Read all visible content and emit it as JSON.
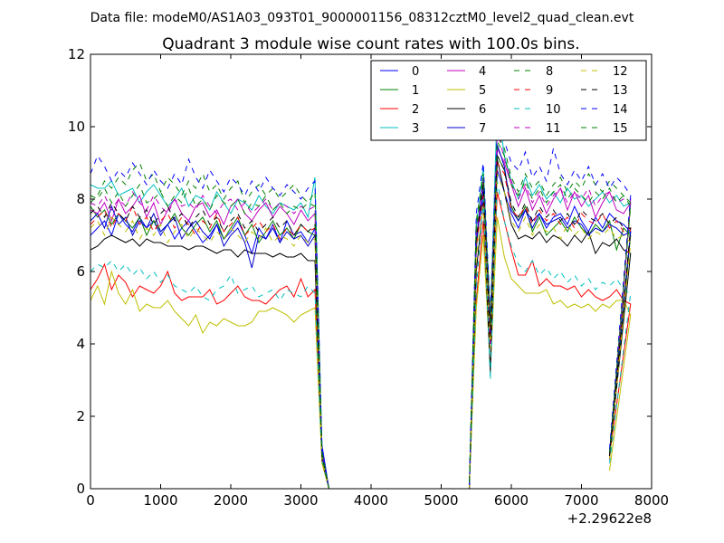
{
  "figure": {
    "suptitle": "Data file: modeM0/AS1A03_093T01_9000001156_08312cztM0_level2_quad_clean.evt"
  },
  "chart_data": {
    "type": "line",
    "title": "Quadrant 3 module wise count rates with 100.0s bins.",
    "xlabel": "",
    "ylabel": "",
    "x_offset_label": "+2.29622e8",
    "xlim": [
      0,
      8000
    ],
    "ylim": [
      0,
      12
    ],
    "xticks": [
      0,
      1000,
      2000,
      3000,
      4000,
      5000,
      6000,
      7000,
      8000
    ],
    "xtick_labels": [
      "0",
      "1000",
      "2000",
      "3000",
      "4000",
      "5000",
      "6000",
      "7000",
      "8000"
    ],
    "yticks": [
      0,
      2,
      4,
      6,
      8,
      10,
      12
    ],
    "ytick_labels": [
      "0",
      "2",
      "4",
      "6",
      "8",
      "10",
      "12"
    ],
    "grid": false,
    "legend": {
      "placement": "top-right",
      "columns": 4
    },
    "series": [
      {
        "name": "0",
        "color": "#0000ff",
        "dash": "solid",
        "segA": [
          7.0,
          7.2,
          7.4,
          7.0,
          7.6,
          7.3,
          7.1,
          7.5,
          7.2,
          7.4,
          7.0,
          7.3,
          6.9,
          7.2,
          7.4,
          7.1,
          6.8,
          7.0,
          7.3,
          6.9,
          7.1,
          7.4,
          7.0,
          6.5,
          7.2,
          6.9,
          7.3,
          6.8,
          7.4,
          7.0,
          7.1,
          6.8,
          7.2
        ],
        "segB": [
          7.0,
          8.0,
          4.4,
          8.8,
          8.2,
          7.6,
          7.2,
          7.7,
          7.4,
          7.6,
          7.2,
          7.5,
          7.6,
          7.3,
          7.8,
          7.4,
          7.1,
          7.5,
          7.2,
          7.6,
          7.4,
          7.3,
          7.1
        ],
        "drop1": [
          1.2,
          0.0
        ],
        "drop2": [
          1.0
        ]
      },
      {
        "name": "1",
        "color": "#008000",
        "dash": "solid",
        "segA": [
          7.8,
          7.5,
          7.7,
          7.3,
          7.6,
          7.4,
          7.2,
          7.5,
          7.0,
          7.4,
          7.1,
          7.3,
          7.6,
          7.2,
          7.0,
          7.3,
          7.5,
          7.1,
          7.4,
          6.9,
          7.2,
          7.5,
          7.0,
          7.3,
          6.8,
          7.1,
          7.4,
          7.0,
          7.2,
          6.9,
          7.3,
          7.1,
          7.0
        ],
        "segB": [
          6.6,
          8.6,
          4.0,
          9.2,
          8.8,
          7.8,
          7.4,
          7.8,
          7.1,
          7.5,
          7.0,
          7.2,
          7.4,
          7.1,
          7.5,
          7.2,
          7.0,
          7.3,
          7.1,
          7.4,
          6.6,
          7.2,
          7.0
        ],
        "drop1": [
          0.9,
          0.0
        ],
        "drop2": [
          0.8
        ]
      },
      {
        "name": "2",
        "color": "#ff0000",
        "dash": "solid",
        "segA": [
          5.5,
          5.8,
          6.2,
          5.5,
          5.9,
          5.7,
          5.3,
          5.6,
          5.5,
          5.4,
          5.6,
          6.0,
          5.4,
          5.2,
          5.3,
          5.3,
          5.3,
          5.5,
          5.1,
          5.2,
          5.4,
          5.6,
          5.3,
          5.2,
          5.2,
          5.1,
          5.3,
          5.5,
          5.6,
          5.3,
          5.8,
          5.3,
          5.5
        ],
        "segB": [
          5.2,
          7.4,
          4.0,
          8.2,
          7.4,
          6.6,
          5.9,
          5.9,
          6.3,
          5.6,
          5.8,
          5.6,
          5.6,
          5.5,
          5.6,
          5.3,
          5.5,
          5.3,
          5.2,
          5.3,
          5.5,
          5.2,
          5.1
        ],
        "drop1": [
          0.8,
          0.0
        ],
        "drop2": [
          0.9
        ]
      },
      {
        "name": "3",
        "color": "#00bfbf",
        "dash": "solid",
        "segA": [
          8.4,
          8.3,
          8.3,
          8.5,
          8.1,
          8.2,
          8.3,
          7.9,
          8.2,
          8.4,
          8.1,
          7.8,
          8.0,
          8.3,
          7.8,
          8.1,
          8.0,
          7.7,
          8.2,
          7.9,
          7.6,
          8.0,
          7.9,
          7.7,
          8.1,
          7.8,
          7.6,
          7.9,
          7.8,
          7.7,
          7.9,
          7.5,
          8.6
        ],
        "segB": [
          7.2,
          8.9,
          4.6,
          10.7,
          9.2,
          8.5,
          8.0,
          8.6,
          8.1,
          8.4,
          8.0,
          8.2,
          7.9,
          8.3,
          8.0,
          8.1,
          7.8,
          8.0,
          8.2,
          7.9,
          8.1,
          7.8,
          7.9
        ],
        "drop1": [
          1.0,
          0.0
        ],
        "drop2": [
          0.9
        ]
      },
      {
        "name": "4",
        "color": "#bf00bf",
        "dash": "solid",
        "segA": [
          7.7,
          7.6,
          7.9,
          7.4,
          8.0,
          7.6,
          7.8,
          8.1,
          7.5,
          7.9,
          7.3,
          7.7,
          8.0,
          7.6,
          7.4,
          7.8,
          7.9,
          7.5,
          7.7,
          7.3,
          7.8,
          8.0,
          7.6,
          7.4,
          7.7,
          7.9,
          7.5,
          7.8,
          7.6,
          7.3,
          7.7,
          7.4,
          7.6
        ],
        "segB": [
          6.9,
          8.5,
          4.0,
          9.4,
          9.0,
          8.4,
          7.8,
          8.3,
          7.7,
          8.1,
          7.6,
          8.0,
          8.3,
          7.7,
          8.2,
          7.8,
          8.1,
          7.5,
          7.9,
          8.2,
          7.7,
          7.6,
          7.9
        ],
        "drop1": [
          0.9,
          0.0
        ],
        "drop2": [
          0.8
        ]
      },
      {
        "name": "5",
        "color": "#bfbf00",
        "dash": "solid",
        "segA": [
          5.2,
          5.6,
          5.1,
          6.0,
          5.4,
          5.1,
          5.5,
          4.9,
          5.1,
          5.0,
          5.0,
          5.2,
          4.9,
          4.7,
          4.5,
          4.8,
          4.3,
          4.6,
          4.5,
          4.7,
          4.6,
          4.5,
          4.5,
          4.6,
          4.9,
          4.9,
          5.0,
          4.9,
          4.8,
          4.6,
          4.8,
          4.9,
          5.0
        ],
        "segB": [
          5.0,
          7.0,
          3.3,
          7.5,
          6.4,
          5.8,
          5.6,
          5.4,
          5.4,
          5.4,
          5.5,
          5.1,
          5.2,
          5.0,
          5.1,
          5.0,
          5.1,
          4.9,
          5.1,
          5.0,
          5.2,
          5.2,
          4.8
        ],
        "drop1": [
          0.7,
          0.0
        ],
        "drop2": [
          0.5
        ]
      },
      {
        "name": "6",
        "color": "#000000",
        "dash": "solid",
        "segA": [
          6.6,
          6.7,
          6.9,
          7.0,
          6.9,
          6.8,
          6.9,
          6.7,
          6.9,
          6.8,
          6.8,
          6.7,
          6.7,
          6.7,
          6.6,
          6.7,
          6.7,
          6.6,
          6.5,
          6.6,
          6.6,
          6.4,
          6.6,
          6.5,
          6.5,
          6.5,
          6.4,
          6.5,
          6.4,
          6.4,
          6.5,
          6.3,
          6.3
        ],
        "segB": [
          6.0,
          7.9,
          3.2,
          9.1,
          8.2,
          7.3,
          6.9,
          7.0,
          6.9,
          7.1,
          6.8,
          7.0,
          6.9,
          6.7,
          7.0,
          6.8,
          7.1,
          6.5,
          6.8,
          6.7,
          6.9,
          6.6,
          6.5
        ],
        "drop1": [
          0.8,
          0.0
        ],
        "drop2": [
          0.9
        ]
      },
      {
        "name": "7",
        "color": "#0000cc",
        "dash": "solid",
        "segA": [
          7.4,
          7.6,
          7.2,
          7.8,
          7.3,
          7.5,
          7.0,
          7.4,
          7.2,
          7.6,
          7.1,
          7.3,
          7.5,
          6.9,
          7.2,
          7.4,
          7.1,
          6.9,
          7.3,
          6.7,
          7.0,
          7.2,
          6.8,
          6.1,
          7.0,
          6.9,
          7.2,
          6.8,
          7.1,
          6.9,
          7.0,
          6.7,
          7.0
        ],
        "segB": [
          6.8,
          8.3,
          4.2,
          9.5,
          8.9,
          7.7,
          7.4,
          7.7,
          7.2,
          7.6,
          7.3,
          7.4,
          7.5,
          7.2,
          7.4,
          7.3,
          7.0,
          7.2,
          7.1,
          7.3,
          7.2,
          7.0,
          7.1
        ],
        "drop1": [
          1.0,
          0.0
        ],
        "drop2": [
          1.0
        ]
      },
      {
        "name": "8",
        "color": "#008000",
        "dash": "dashed",
        "segA": [
          7.9,
          8.1,
          8.5,
          8.3,
          8.6,
          8.4,
          8.8,
          9.0,
          8.5,
          8.7,
          8.2,
          8.6,
          8.4,
          8.1,
          8.5,
          8.3,
          8.7,
          8.2,
          8.4,
          8.0,
          8.3,
          8.5,
          7.9,
          8.2,
          8.4,
          8.1,
          8.3,
          8.0,
          8.2,
          8.4,
          8.1,
          7.9,
          8.2
        ],
        "segB": [
          7.4,
          8.7,
          4.7,
          9.8,
          9.4,
          8.6,
          8.2,
          8.7,
          8.3,
          8.5,
          8.1,
          8.4,
          8.6,
          8.2,
          8.5,
          8.3,
          8.7,
          8.4,
          8.2,
          8.5,
          8.3,
          8.1,
          7.8
        ],
        "drop1": [
          1.0,
          0.0
        ],
        "drop2": [
          1.0
        ]
      },
      {
        "name": "9",
        "color": "#ff0000",
        "dash": "dashed",
        "segA": [
          7.3,
          7.5,
          7.7,
          7.2,
          7.6,
          7.4,
          7.8,
          7.3,
          7.5,
          7.1,
          7.4,
          7.6,
          7.2,
          7.5,
          7.3,
          7.0,
          7.4,
          7.2,
          7.6,
          7.1,
          7.3,
          7.5,
          7.0,
          7.2,
          7.4,
          7.1,
          7.3,
          6.9,
          7.2,
          7.0,
          7.3,
          7.1,
          7.2
        ],
        "segB": [
          6.7,
          8.1,
          4.1,
          9.0,
          8.7,
          7.7,
          7.5,
          7.8,
          7.3,
          7.7,
          7.4,
          7.6,
          7.3,
          7.5,
          7.2,
          7.6,
          7.4,
          7.3,
          7.6,
          7.2,
          7.4,
          7.1,
          7.2
        ],
        "drop1": [
          0.9,
          0.0
        ],
        "drop2": [
          0.9
        ]
      },
      {
        "name": "10",
        "color": "#00bfbf",
        "dash": "dashed",
        "segA": [
          6.0,
          6.2,
          6.1,
          6.3,
          6.0,
          6.2,
          5.9,
          6.1,
          5.8,
          6.0,
          5.7,
          5.9,
          5.6,
          5.5,
          5.4,
          5.6,
          5.3,
          5.2,
          5.5,
          5.6,
          5.9,
          5.4,
          5.5,
          5.6,
          5.3,
          5.4,
          5.5,
          5.2,
          5.5,
          5.4,
          5.3,
          5.6,
          5.4
        ],
        "segB": [
          5.5,
          8.0,
          3.0,
          8.5,
          7.4,
          6.7,
          6.2,
          6.0,
          6.3,
          5.9,
          6.1,
          5.8,
          6.0,
          5.7,
          5.9,
          5.6,
          5.8,
          5.5,
          5.7,
          5.6,
          5.8,
          5.5,
          5.4
        ],
        "drop1": [
          0.8,
          0.0
        ],
        "drop2": [
          0.7
        ]
      },
      {
        "name": "11",
        "color": "#bf00bf",
        "dash": "dashed",
        "segA": [
          7.9,
          7.8,
          8.1,
          7.7,
          8.0,
          7.8,
          8.2,
          7.9,
          7.7,
          8.1,
          7.8,
          7.6,
          8.0,
          7.8,
          7.9,
          7.7,
          8.1,
          7.8,
          7.6,
          7.9,
          8.0,
          7.7,
          7.9,
          7.6,
          7.8,
          8.0,
          7.7,
          7.9,
          7.8,
          7.6,
          7.8,
          7.7,
          7.8
        ],
        "segB": [
          7.0,
          8.6,
          4.3,
          9.9,
          9.1,
          8.5,
          8.0,
          8.4,
          7.9,
          8.2,
          7.8,
          8.1,
          8.3,
          7.9,
          8.2,
          8.0,
          8.3,
          7.8,
          8.1,
          8.2,
          7.9,
          8.0,
          8.0
        ],
        "drop1": [
          1.0,
          0.0
        ],
        "drop2": [
          0.9
        ]
      },
      {
        "name": "12",
        "color": "#bfbf00",
        "dash": "dashed",
        "segA": [
          7.2,
          7.4,
          7.0,
          7.5,
          7.3,
          7.1,
          7.4,
          6.9,
          7.2,
          7.0,
          7.3,
          6.8,
          7.1,
          7.3,
          6.9,
          7.2,
          7.0,
          6.8,
          7.1,
          6.9,
          7.2,
          7.0,
          6.8,
          7.1,
          6.9,
          7.2,
          6.8,
          7.0,
          6.9,
          6.7,
          7.0,
          6.8,
          6.9
        ],
        "segB": [
          6.4,
          7.8,
          3.9,
          8.7,
          8.2,
          7.4,
          7.1,
          7.5,
          7.0,
          7.3,
          7.1,
          7.2,
          6.9,
          7.3,
          7.0,
          7.2,
          6.9,
          7.1,
          7.0,
          7.2,
          6.9,
          7.0,
          6.8
        ],
        "drop1": [
          0.8,
          0.0
        ],
        "drop2": [
          0.8
        ]
      },
      {
        "name": "13",
        "color": "#000000",
        "dash": "dashed",
        "segA": [
          7.6,
          7.8,
          7.5,
          7.9,
          7.6,
          7.4,
          7.8,
          7.5,
          7.7,
          7.3,
          7.6,
          7.8,
          7.4,
          7.6,
          7.2,
          7.5,
          7.7,
          7.3,
          7.5,
          7.1,
          7.4,
          7.6,
          7.2,
          7.4,
          7.1,
          7.3,
          7.5,
          7.2,
          7.4,
          7.0,
          7.3,
          7.1,
          7.3
        ],
        "segB": [
          6.9,
          8.4,
          4.2,
          9.2,
          8.8,
          7.9,
          7.5,
          7.9,
          7.4,
          7.8,
          7.5,
          7.7,
          7.4,
          7.6,
          7.3,
          7.7,
          7.5,
          7.4,
          7.6,
          7.3,
          7.5,
          7.2,
          7.2
        ],
        "drop1": [
          0.9,
          0.0
        ],
        "drop2": [
          0.9
        ]
      },
      {
        "name": "14",
        "color": "#0000ff",
        "dash": "dashed",
        "segA": [
          8.7,
          9.2,
          8.9,
          8.5,
          8.8,
          8.6,
          9.0,
          8.7,
          8.4,
          8.8,
          8.5,
          8.3,
          8.7,
          8.4,
          9.1,
          8.6,
          8.3,
          8.8,
          8.5,
          8.2,
          8.6,
          8.4,
          8.1,
          8.5,
          8.2,
          8.6,
          8.3,
          8.1,
          8.4,
          8.2,
          8.0,
          8.3,
          8.5
        ],
        "segB": [
          7.6,
          9.0,
          4.8,
          10.0,
          9.6,
          9.0,
          8.8,
          9.3,
          8.6,
          8.9,
          8.5,
          9.4,
          8.7,
          8.4,
          8.8,
          8.5,
          8.9,
          8.4,
          8.7,
          8.3,
          8.6,
          8.4,
          8.1
        ],
        "drop1": [
          1.1,
          0.0
        ],
        "drop2": [
          1.1
        ]
      },
      {
        "name": "15",
        "color": "#008000",
        "dash": "dashed",
        "segA": [
          8.1,
          8.0,
          8.3,
          7.9,
          8.2,
          7.8,
          8.1,
          8.4,
          7.9,
          8.0,
          8.2,
          7.8,
          8.1,
          7.9,
          8.3,
          7.8,
          8.0,
          7.7,
          8.1,
          7.9,
          7.8,
          8.0,
          7.6,
          7.9,
          7.8,
          8.1,
          7.7,
          7.9,
          7.6,
          7.8,
          7.7,
          7.9,
          7.8
        ],
        "segB": [
          7.2,
          8.6,
          4.5,
          9.6,
          9.2,
          8.4,
          8.1,
          8.5,
          8.0,
          8.3,
          7.9,
          8.2,
          8.4,
          8.0,
          8.3,
          8.1,
          7.9,
          8.2,
          8.0,
          8.3,
          7.9,
          8.1,
          7.9
        ],
        "drop1": [
          1.0,
          0.0
        ],
        "drop2": [
          0.9
        ]
      }
    ]
  }
}
